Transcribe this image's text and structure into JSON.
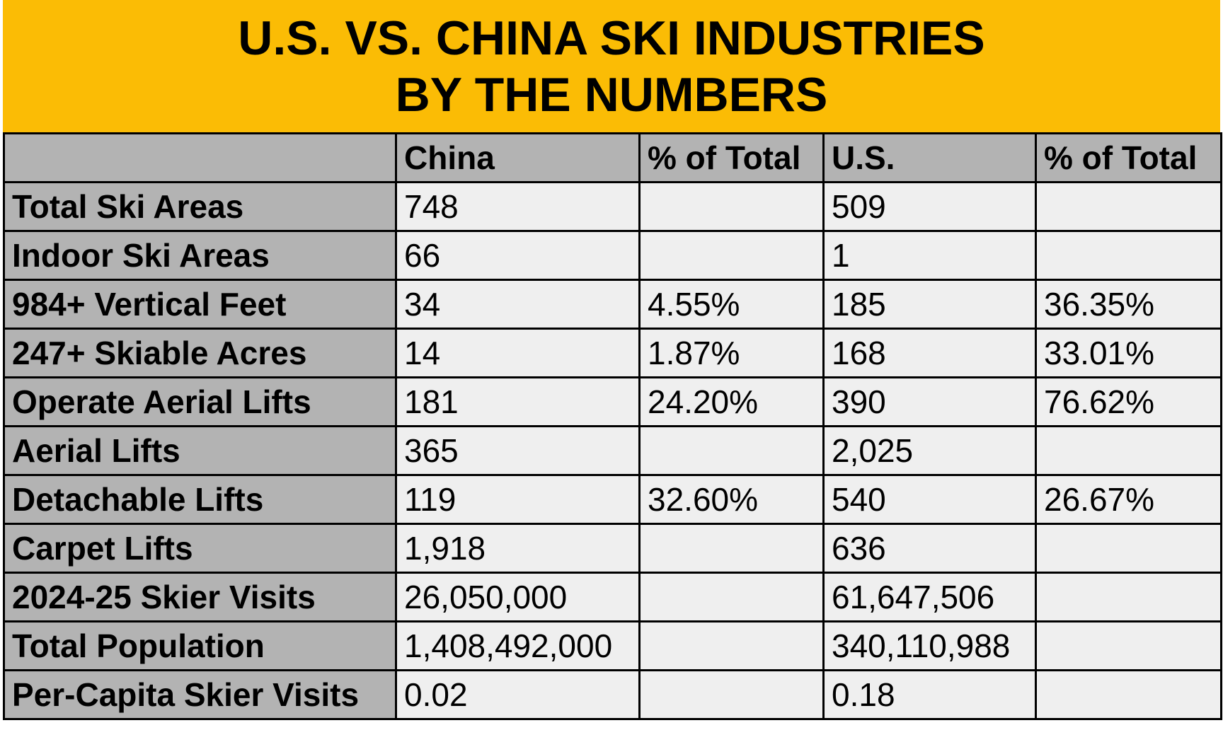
{
  "header": {
    "title_lines": [
      "U.S. VS. CHINA SKI INDUSTRIES",
      "BY THE NUMBERS"
    ]
  },
  "table": {
    "columns": [
      null,
      "China",
      "% of Total",
      "U.S.",
      "% of Total"
    ],
    "rows": [
      [
        "Total Ski Areas",
        "748",
        null,
        "509",
        null
      ],
      [
        "Indoor Ski Areas",
        "66",
        null,
        "1",
        null
      ],
      [
        "984+ Vertical Feet",
        "34",
        "4.55%",
        "185",
        "36.35%"
      ],
      [
        "247+ Skiable Acres",
        "14",
        "1.87%",
        "168",
        "33.01%"
      ],
      [
        "Operate Aerial Lifts",
        "181",
        "24.20%",
        "390",
        "76.62%"
      ],
      [
        "Aerial Lifts",
        "365",
        null,
        "2,025",
        null
      ],
      [
        "Detachable Lifts",
        "119",
        "32.60%",
        "540",
        "26.67%"
      ],
      [
        "Carpet Lifts",
        "1,918",
        null,
        "636",
        null
      ],
      [
        "2024-25 Skier Visits",
        "26,050,000",
        null,
        "61,647,506",
        null
      ],
      [
        "Total Population",
        "1,408,492,000",
        null,
        "340,110,988",
        null
      ],
      [
        "Per-Capita Skier Visits",
        "0.02",
        null,
        "0.18",
        null
      ]
    ]
  }
}
